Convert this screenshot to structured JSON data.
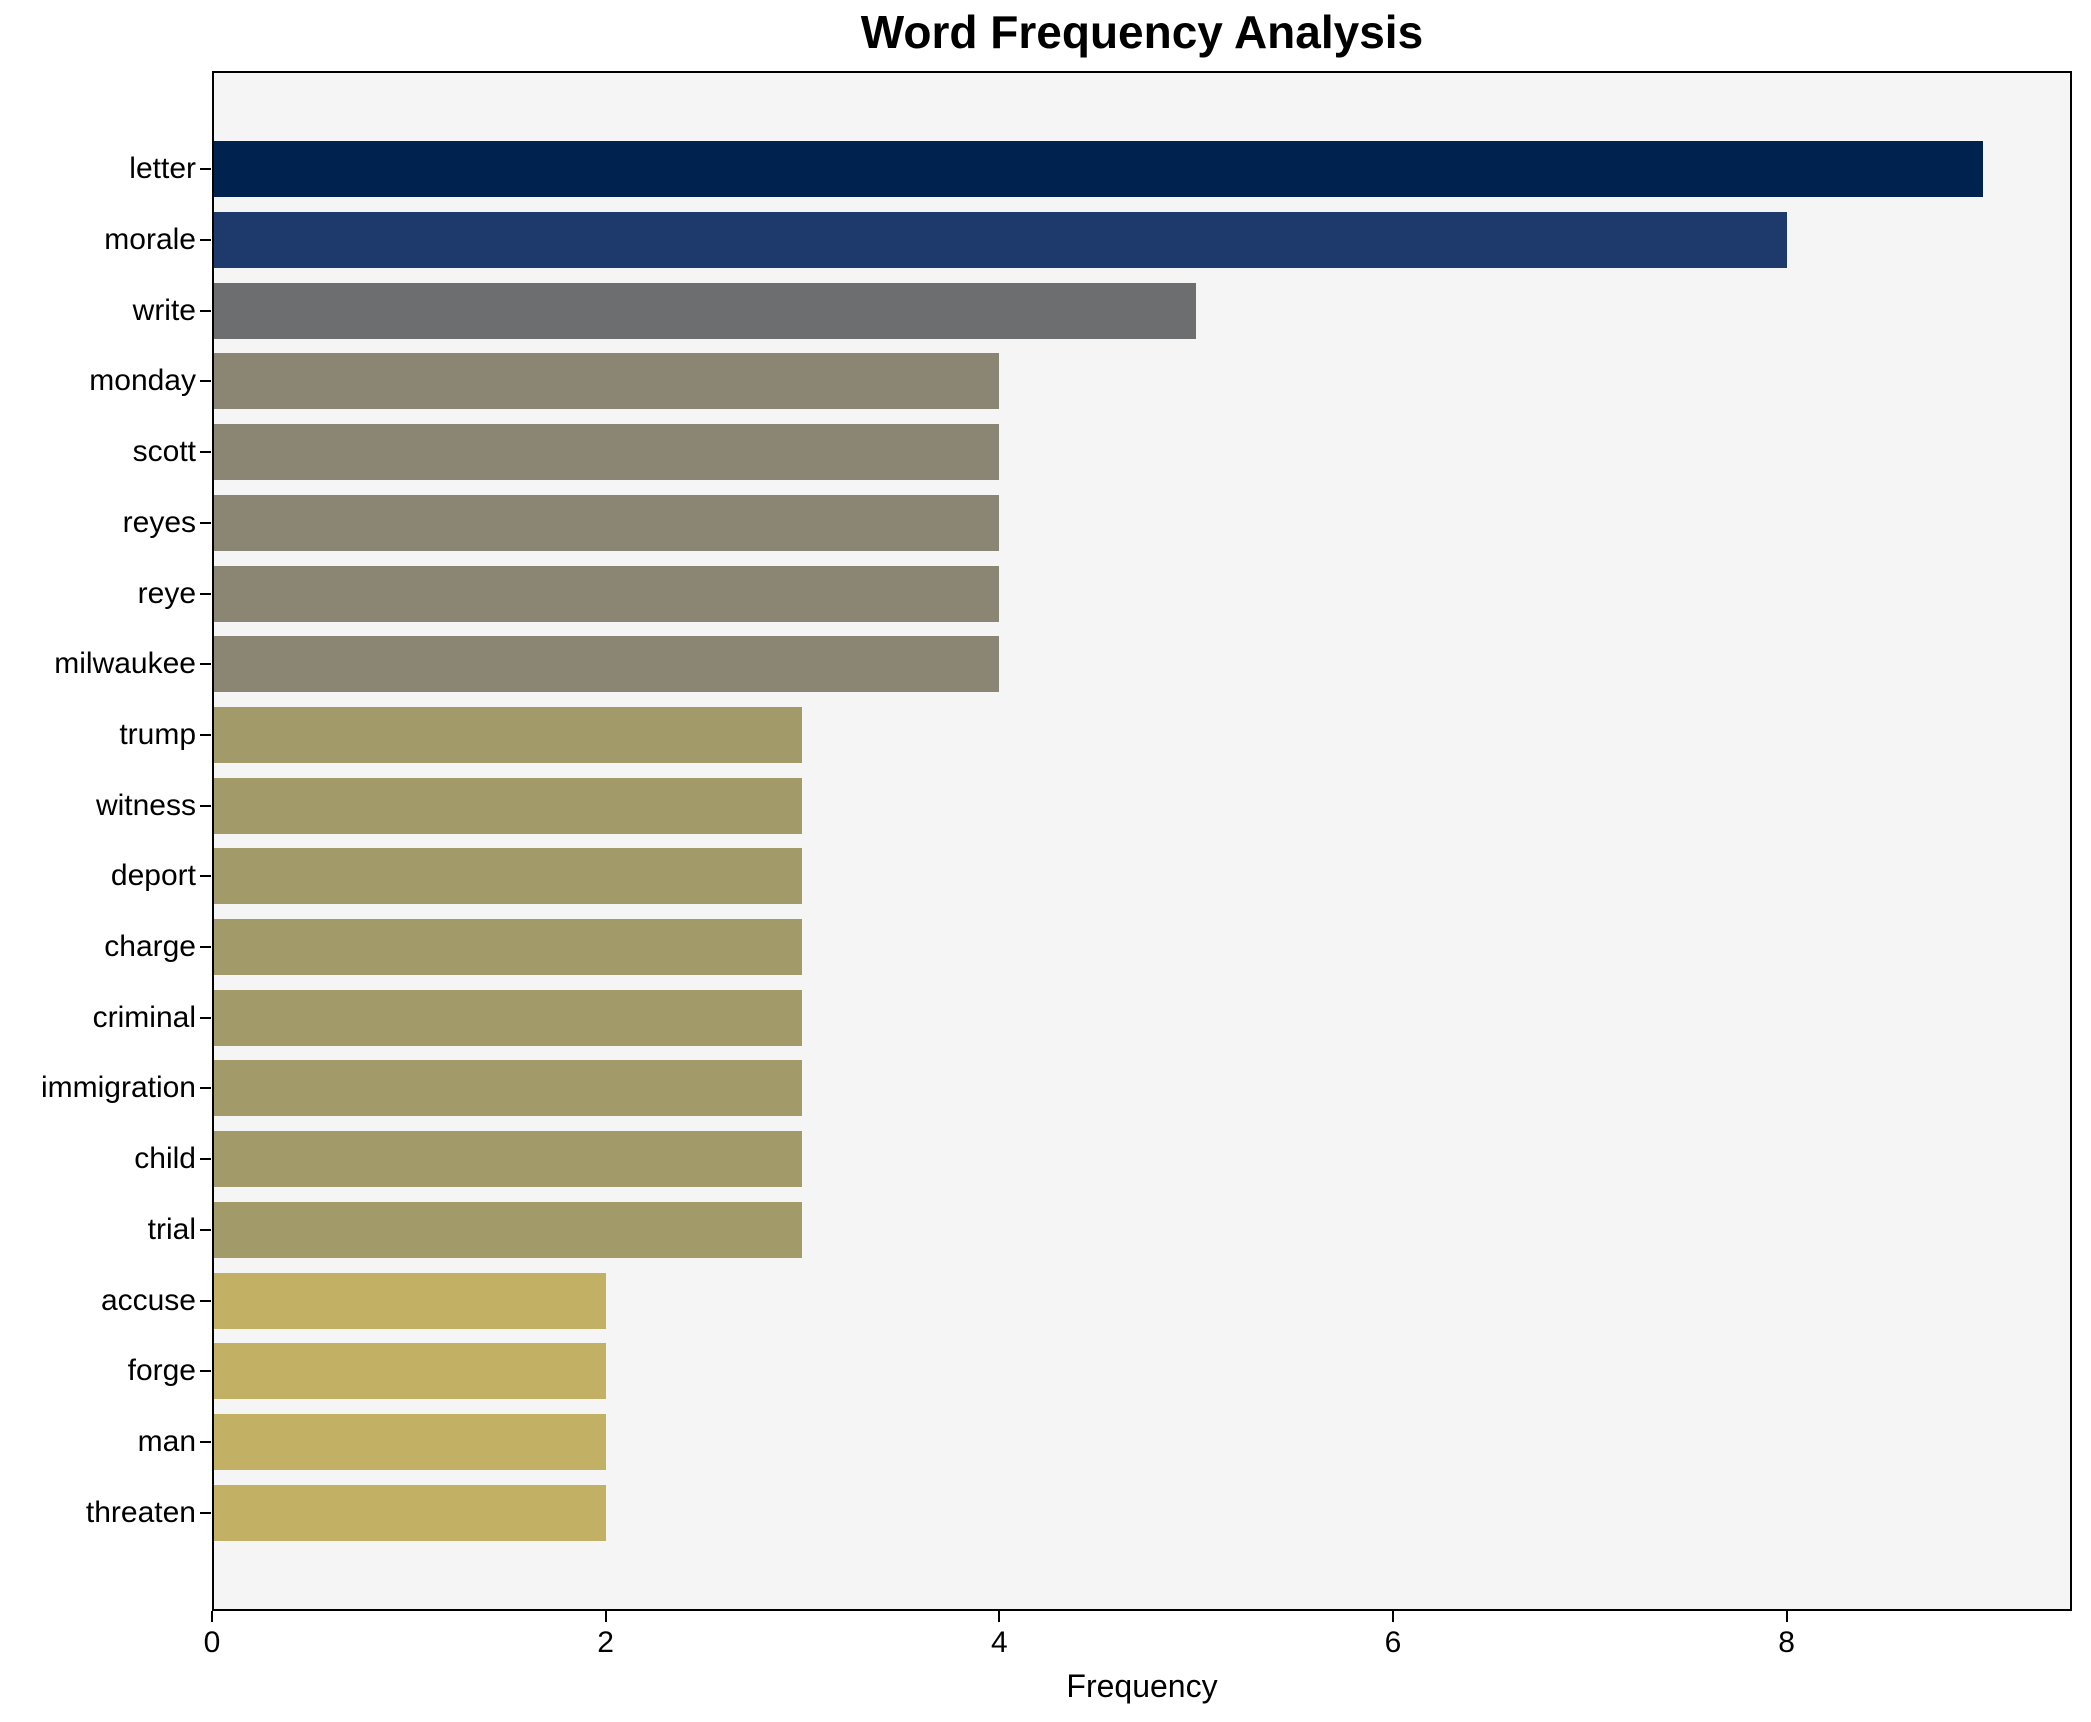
{
  "title": "Word Frequency Analysis",
  "chart_data": {
    "type": "bar",
    "orientation": "horizontal",
    "title": "Word Frequency Analysis",
    "xlabel": "Frequency",
    "ylabel": "",
    "categories": [
      "letter",
      "morale",
      "write",
      "monday",
      "scott",
      "reyes",
      "reye",
      "milwaukee",
      "trump",
      "witness",
      "deport",
      "charge",
      "criminal",
      "immigration",
      "child",
      "trial",
      "accuse",
      "forge",
      "man",
      "threaten"
    ],
    "values": [
      9,
      8,
      5,
      4,
      4,
      4,
      4,
      4,
      3,
      3,
      3,
      3,
      3,
      3,
      3,
      3,
      2,
      2,
      2,
      2
    ],
    "bar_colors": [
      "#00224e",
      "#1e3a6c",
      "#6d6e70",
      "#8b8673",
      "#8b8673",
      "#8b8673",
      "#8b8673",
      "#8b8673",
      "#a39a69",
      "#a39a69",
      "#a39a69",
      "#a39a69",
      "#a39a69",
      "#a39a69",
      "#a39a69",
      "#a39a69",
      "#c2b164",
      "#c2b164",
      "#c2b164",
      "#c2b164"
    ],
    "x_ticks": [
      0,
      2,
      4,
      6,
      8
    ],
    "xlim": [
      0,
      9.45
    ],
    "grid": false,
    "legend": false,
    "plot_background": "#f5f5f6",
    "figure_background": "#ffffff",
    "spine_color": "#000000"
  }
}
